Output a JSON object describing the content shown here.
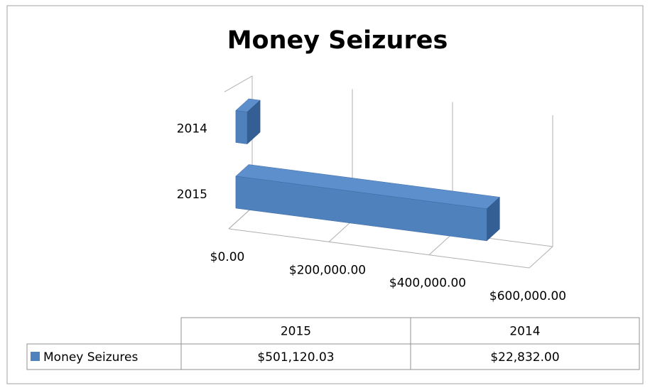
{
  "chart_data": {
    "type": "bar3d_horizontal",
    "title": "Money Seizures",
    "categories": [
      "2015",
      "2014"
    ],
    "series": [
      {
        "name": "Money Seizures",
        "color": "#4f81bd",
        "values": [
          501120.03,
          22832
        ],
        "value_labels": [
          "$501,120.03",
          "$22,832.00"
        ]
      }
    ],
    "xlim": [
      0,
      600000
    ],
    "xticks": [
      {
        "value": 0,
        "label": "$0.00"
      },
      {
        "value": 200000,
        "label": "$200,000.00"
      },
      {
        "value": 400000,
        "label": "$400,000.00"
      },
      {
        "value": 600000,
        "label": "$600,000.00"
      }
    ],
    "grid": true,
    "data_table": true
  }
}
